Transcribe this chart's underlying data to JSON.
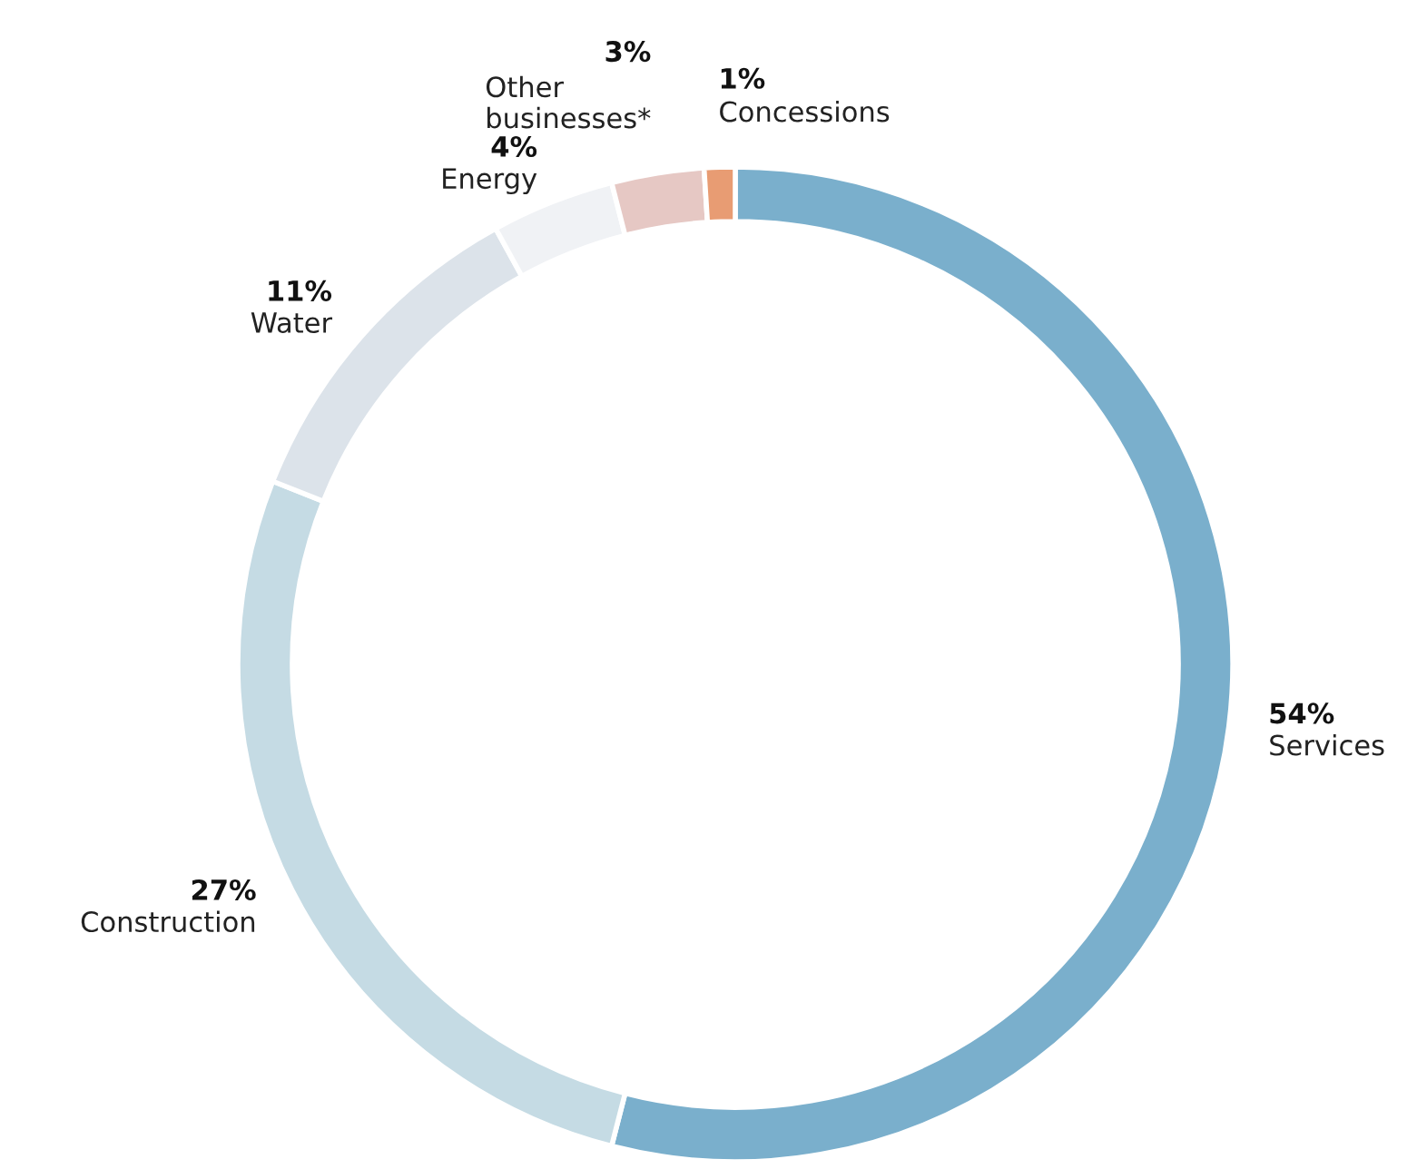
{
  "chart_data": {
    "type": "donut",
    "categories": [
      "Services",
      "Construction",
      "Water",
      "Energy",
      "Other\nbusinesses*",
      "Concessions"
    ],
    "values": [
      54,
      27,
      11,
      4,
      3,
      1
    ],
    "value_labels": [
      "54%",
      "27%",
      "11%",
      "4%",
      "3%",
      "1%"
    ],
    "colors": [
      "#7aafcc",
      "#c5dbe4",
      "#dce3ea",
      "#f0f2f5",
      "#e6c8c4",
      "#e89c73"
    ]
  }
}
